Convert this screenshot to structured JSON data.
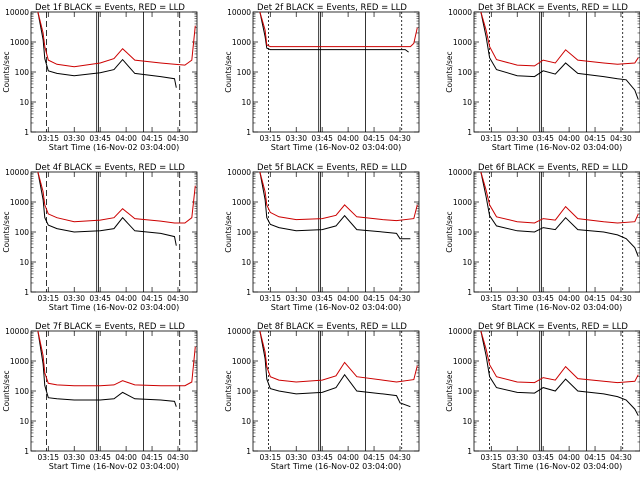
{
  "figure": {
    "ylabel": "Counts/sec",
    "xlabel": "Start Time (16-Nov-02 03:04:00)"
  },
  "chart_data": [
    {
      "type": "line",
      "title": "Det 1f  BLACK = Events, RED = LLD",
      "xlabel": "Start Time (16-Nov-02 03:04:00)",
      "ylabel": "Counts/sec",
      "xticks": [
        "03:15",
        "03:30",
        "03:45",
        "04:00",
        "04:15",
        "04:30"
      ],
      "ylim": [
        1,
        10000
      ],
      "yscale": "log",
      "series": [
        {
          "name": "Events",
          "color": "#000000",
          "x": [
            "03:09",
            "03:12",
            "03:13",
            "03:15",
            "03:20",
            "03:30",
            "03:45",
            "03:53",
            "03:58",
            "04:05",
            "04:20",
            "04:28",
            "04:29",
            "04:31",
            "04:35",
            "04:40"
          ],
          "values": [
            10000,
            1200,
            280,
            110,
            90,
            75,
            95,
            120,
            260,
            90,
            70,
            60,
            30,
            0,
            0,
            0
          ]
        },
        {
          "name": "LLD",
          "color": "#cc0000",
          "x": [
            "03:09",
            "03:12",
            "03:13",
            "03:15",
            "03:20",
            "03:30",
            "03:45",
            "03:53",
            "03:58",
            "04:05",
            "04:20",
            "04:28",
            "04:34",
            "04:38",
            "04:40"
          ],
          "values": [
            10000,
            2000,
            700,
            250,
            180,
            150,
            200,
            280,
            600,
            250,
            200,
            180,
            170,
            250,
            3500
          ]
        }
      ]
    },
    {
      "type": "line",
      "title": "Det 2f  BLACK = Events, RED = LLD",
      "xlabel": "Start Time (16-Nov-02 03:04:00)",
      "ylabel": "Counts/sec",
      "xticks": [
        "03:15",
        "03:30",
        "03:45",
        "04:00",
        "04:15",
        "04:30"
      ],
      "ylim": [
        1,
        10000
      ],
      "yscale": "log",
      "series": [
        {
          "name": "Events",
          "color": "#000000",
          "x": [
            "03:09",
            "03:12",
            "03:13",
            "03:15",
            "03:30",
            "03:45",
            "04:00",
            "04:15",
            "04:28",
            "04:33",
            "04:35",
            "04:36",
            "04:40"
          ],
          "values": [
            10000,
            1500,
            620,
            560,
            560,
            560,
            560,
            560,
            560,
            560,
            460,
            0,
            0
          ]
        },
        {
          "name": "LLD",
          "color": "#cc0000",
          "x": [
            "03:09",
            "03:12",
            "03:13",
            "03:15",
            "03:30",
            "03:45",
            "04:00",
            "04:15",
            "04:28",
            "04:36",
            "04:38",
            "04:40"
          ],
          "values": [
            10000,
            2500,
            800,
            700,
            700,
            700,
            700,
            700,
            700,
            700,
            900,
            3000
          ]
        }
      ]
    },
    {
      "type": "line",
      "title": "Det 3f  BLACK = Events, RED = LLD",
      "xlabel": "Start Time (16-Nov-02 03:04:00)",
      "ylabel": "Counts/sec",
      "xticks": [
        "03:15",
        "03:30",
        "03:45",
        "04:00",
        "04:15",
        "04:30"
      ],
      "ylim": [
        1,
        10000
      ],
      "yscale": "log",
      "series": [
        {
          "name": "Events",
          "color": "#000000",
          "x": [
            "03:09",
            "03:12",
            "03:14",
            "03:18",
            "03:30",
            "03:40",
            "03:45",
            "03:52",
            "03:58",
            "04:05",
            "04:20",
            "04:28",
            "04:33",
            "04:38",
            "04:40"
          ],
          "values": [
            10000,
            1500,
            300,
            120,
            75,
            70,
            110,
            85,
            200,
            90,
            70,
            60,
            55,
            25,
            12
          ]
        },
        {
          "name": "LLD",
          "color": "#cc0000",
          "x": [
            "03:09",
            "03:12",
            "03:14",
            "03:18",
            "03:30",
            "03:40",
            "03:45",
            "03:52",
            "03:58",
            "04:05",
            "04:20",
            "04:28",
            "04:38",
            "04:40"
          ],
          "values": [
            10000,
            2500,
            700,
            260,
            170,
            160,
            250,
            200,
            550,
            250,
            200,
            180,
            200,
            300
          ]
        }
      ]
    },
    {
      "type": "line",
      "title": "Det 4f  BLACK = Events, RED = LLD",
      "xlabel": "Start Time (16-Nov-02 03:04:00)",
      "ylabel": "Counts/sec",
      "xticks": [
        "03:15",
        "03:30",
        "03:45",
        "04:00",
        "04:15",
        "04:30"
      ],
      "ylim": [
        1,
        10000
      ],
      "yscale": "log",
      "series": [
        {
          "name": "Events",
          "color": "#000000",
          "x": [
            "03:09",
            "03:12",
            "03:13",
            "03:15",
            "03:20",
            "03:30",
            "03:45",
            "03:53",
            "03:58",
            "04:05",
            "04:20",
            "04:28",
            "04:29",
            "04:31",
            "04:40"
          ],
          "values": [
            10000,
            1200,
            300,
            170,
            130,
            100,
            110,
            130,
            300,
            110,
            90,
            70,
            35,
            0,
            0
          ]
        },
        {
          "name": "LLD",
          "color": "#cc0000",
          "x": [
            "03:09",
            "03:12",
            "03:13",
            "03:15",
            "03:20",
            "03:30",
            "03:45",
            "03:53",
            "03:58",
            "04:05",
            "04:20",
            "04:28",
            "04:34",
            "04:38",
            "04:40"
          ],
          "values": [
            10000,
            2200,
            800,
            400,
            300,
            220,
            250,
            300,
            600,
            280,
            230,
            200,
            200,
            300,
            3500
          ]
        }
      ]
    },
    {
      "type": "line",
      "title": "Det 5f  BLACK = Events, RED = LLD",
      "xlabel": "Start Time (16-Nov-02 03:04:00)",
      "ylabel": "Counts/sec",
      "xticks": [
        "03:15",
        "03:30",
        "03:45",
        "04:00",
        "04:15",
        "04:30"
      ],
      "ylim": [
        1,
        10000
      ],
      "yscale": "log",
      "series": [
        {
          "name": "Events",
          "color": "#000000",
          "x": [
            "03:09",
            "03:12",
            "03:13",
            "03:15",
            "03:20",
            "03:30",
            "03:45",
            "03:53",
            "03:58",
            "04:05",
            "04:20",
            "04:28",
            "04:30",
            "04:36",
            "04:40"
          ],
          "values": [
            10000,
            1200,
            300,
            180,
            140,
            110,
            120,
            160,
            350,
            120,
            100,
            90,
            60,
            60,
            0
          ]
        },
        {
          "name": "LLD",
          "color": "#cc0000",
          "x": [
            "03:09",
            "03:12",
            "03:13",
            "03:15",
            "03:20",
            "03:30",
            "03:45",
            "03:53",
            "03:58",
            "04:05",
            "04:20",
            "04:28",
            "04:38",
            "04:40"
          ],
          "values": [
            10000,
            2200,
            800,
            450,
            320,
            260,
            280,
            360,
            800,
            320,
            260,
            240,
            280,
            800
          ]
        }
      ]
    },
    {
      "type": "line",
      "title": "Det 6f  BLACK = Events, RED = LLD",
      "xlabel": "Start Time (16-Nov-02 03:04:00)",
      "ylabel": "Counts/sec",
      "xticks": [
        "03:15",
        "03:30",
        "03:45",
        "04:00",
        "04:15",
        "04:30"
      ],
      "ylim": [
        1,
        10000
      ],
      "yscale": "log",
      "series": [
        {
          "name": "Events",
          "color": "#000000",
          "x": [
            "03:09",
            "03:12",
            "03:14",
            "03:18",
            "03:30",
            "03:40",
            "03:45",
            "03:52",
            "03:58",
            "04:05",
            "04:20",
            "04:28",
            "04:33",
            "04:38",
            "04:40"
          ],
          "values": [
            10000,
            1500,
            350,
            160,
            110,
            100,
            140,
            120,
            300,
            120,
            100,
            80,
            60,
            30,
            15
          ]
        },
        {
          "name": "LLD",
          "color": "#cc0000",
          "x": [
            "03:09",
            "03:12",
            "03:14",
            "03:18",
            "03:30",
            "03:40",
            "03:45",
            "03:52",
            "03:58",
            "04:05",
            "04:20",
            "04:28",
            "04:38",
            "04:40"
          ],
          "values": [
            10000,
            2500,
            800,
            320,
            220,
            200,
            280,
            250,
            700,
            280,
            220,
            200,
            220,
            400
          ]
        }
      ]
    },
    {
      "type": "line",
      "title": "Det 7f  BLACK = Events, RED = LLD",
      "xlabel": "Start Time (16-Nov-02 03:04:00)",
      "ylabel": "Counts/sec",
      "xticks": [
        "03:15",
        "03:30",
        "03:45",
        "04:00",
        "04:15",
        "04:30"
      ],
      "ylim": [
        1,
        10000
      ],
      "yscale": "log",
      "series": [
        {
          "name": "Events",
          "color": "#000000",
          "x": [
            "03:09",
            "03:12",
            "03:13",
            "03:15",
            "03:20",
            "03:30",
            "03:45",
            "03:53",
            "03:58",
            "04:05",
            "04:20",
            "04:28",
            "04:29",
            "04:31",
            "04:40"
          ],
          "values": [
            10000,
            800,
            150,
            60,
            55,
            50,
            50,
            55,
            90,
            55,
            50,
            45,
            30,
            0,
            0
          ]
        },
        {
          "name": "LLD",
          "color": "#cc0000",
          "x": [
            "03:09",
            "03:12",
            "03:13",
            "03:15",
            "03:20",
            "03:30",
            "03:45",
            "03:53",
            "03:58",
            "04:05",
            "04:20",
            "04:28",
            "04:34",
            "04:38",
            "04:40"
          ],
          "values": [
            10000,
            1500,
            400,
            180,
            160,
            150,
            150,
            160,
            220,
            160,
            150,
            150,
            150,
            200,
            3000
          ]
        }
      ]
    },
    {
      "type": "line",
      "title": "Det 8f  BLACK = Events, RED = LLD",
      "xlabel": "Start Time (16-Nov-02 03:04:00)",
      "ylabel": "Counts/sec",
      "xticks": [
        "03:15",
        "03:30",
        "03:45",
        "04:00",
        "04:15",
        "04:30"
      ],
      "ylim": [
        1,
        10000
      ],
      "yscale": "log",
      "series": [
        {
          "name": "Events",
          "color": "#000000",
          "x": [
            "03:09",
            "03:12",
            "03:13",
            "03:15",
            "03:20",
            "03:30",
            "03:45",
            "03:53",
            "03:58",
            "04:05",
            "04:20",
            "04:28",
            "04:30",
            "04:36",
            "04:40"
          ],
          "values": [
            10000,
            1200,
            250,
            120,
            100,
            80,
            90,
            130,
            350,
            100,
            80,
            70,
            40,
            30,
            0
          ]
        },
        {
          "name": "LLD",
          "color": "#cc0000",
          "x": [
            "03:09",
            "03:12",
            "03:13",
            "03:15",
            "03:20",
            "03:30",
            "03:45",
            "03:53",
            "03:58",
            "04:05",
            "04:20",
            "04:28",
            "04:38",
            "04:40"
          ],
          "values": [
            10000,
            2000,
            650,
            300,
            230,
            200,
            230,
            320,
            900,
            300,
            230,
            200,
            240,
            700
          ]
        }
      ]
    },
    {
      "type": "line",
      "title": "Det 9f  BLACK = Events, RED = LLD",
      "xlabel": "Start Time (16-Nov-02 03:04:00)",
      "ylabel": "Counts/sec",
      "xticks": [
        "03:15",
        "03:30",
        "03:45",
        "04:00",
        "04:15",
        "04:30"
      ],
      "ylim": [
        1,
        10000
      ],
      "yscale": "log",
      "series": [
        {
          "name": "Events",
          "color": "#000000",
          "x": [
            "03:09",
            "03:12",
            "03:14",
            "03:18",
            "03:30",
            "03:40",
            "03:45",
            "03:52",
            "03:58",
            "04:05",
            "04:20",
            "04:28",
            "04:33",
            "04:38",
            "04:40"
          ],
          "values": [
            10000,
            1500,
            300,
            130,
            90,
            85,
            130,
            100,
            250,
            100,
            80,
            65,
            50,
            25,
            15
          ]
        },
        {
          "name": "LLD",
          "color": "#cc0000",
          "x": [
            "03:09",
            "03:12",
            "03:14",
            "03:18",
            "03:30",
            "03:40",
            "03:45",
            "03:52",
            "03:58",
            "04:05",
            "04:20",
            "04:28",
            "04:38",
            "04:40"
          ],
          "values": [
            10000,
            2500,
            750,
            300,
            200,
            190,
            280,
            230,
            650,
            260,
            210,
            190,
            210,
            350
          ]
        }
      ]
    }
  ]
}
